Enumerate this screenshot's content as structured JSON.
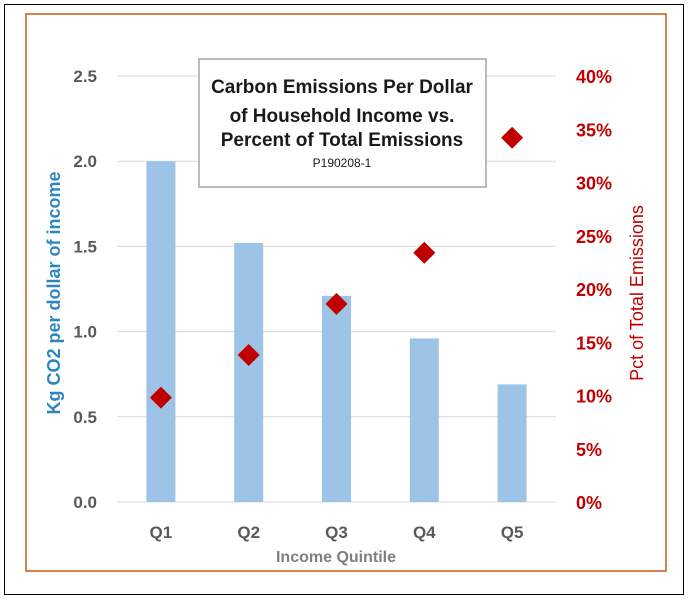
{
  "colors": {
    "bar": "#9dc3e6",
    "marker": "#c00000",
    "frame": "#c55a11",
    "left_axis_title": "#2e86c1",
    "right_axis": "#c00000",
    "grid": "#d9d9d9"
  },
  "chart_data": {
    "type": "bar",
    "title_lines": [
      "Carbon Emissions Per Dollar",
      "of Household Income vs.",
      "Percent of Total Emissions"
    ],
    "subtitle": "P190208-1",
    "xlabel": "Income Quintile",
    "ylabel": "Kg CO2 per dollar of income",
    "y2label": "Pct of Total Emissions",
    "categories": [
      "Q1",
      "Q2",
      "Q3",
      "Q4",
      "Q5"
    ],
    "ylim": [
      0,
      2.5
    ],
    "y_ticks": [
      "0.0",
      "0.5",
      "1.0",
      "1.5",
      "2.0",
      "2.5"
    ],
    "y2lim": [
      0,
      40
    ],
    "y2_ticks": [
      "0%",
      "5%",
      "10%",
      "15%",
      "20%",
      "25%",
      "30%",
      "35%",
      "40%"
    ],
    "grid": true,
    "series": [
      {
        "name": "Kg CO2 per dollar of income",
        "type": "bar",
        "axis": "left",
        "values": [
          2.0,
          1.52,
          1.21,
          0.96,
          0.69
        ]
      },
      {
        "name": "Pct of Total Emissions",
        "type": "scatter",
        "marker": "diamond",
        "axis": "right",
        "values": [
          9.8,
          13.8,
          18.6,
          23.4,
          34.2
        ]
      }
    ]
  }
}
